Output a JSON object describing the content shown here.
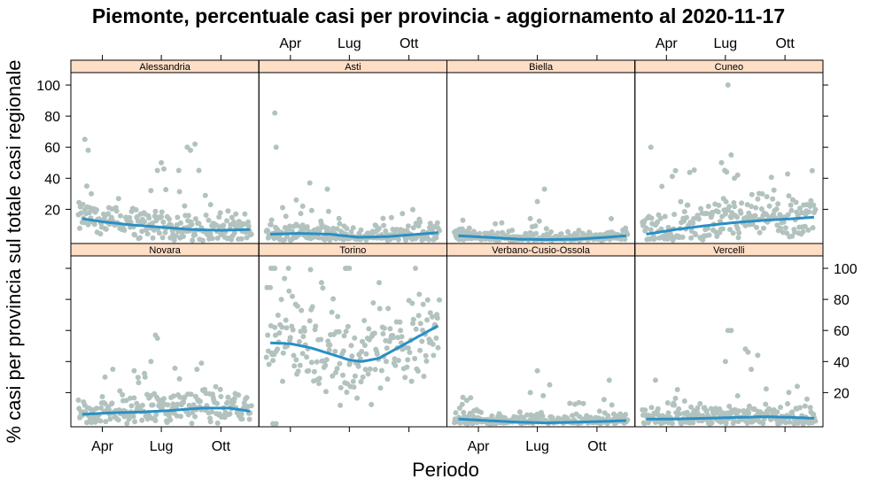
{
  "chart_data": {
    "type": "scatter",
    "title": "Piemonte, percentuale casi per provincia - aggiornamento al 2020-11-17",
    "xlabel": "Periodo",
    "ylabel": "% casi per provincia sul totale casi regionale",
    "x_tick_labels": [
      "Apr",
      "Lug",
      "Ott"
    ],
    "y_tick_labels": [
      "20",
      "40",
      "60",
      "80",
      "100"
    ],
    "x_range": [
      "2020-02-24",
      "2020-11-17"
    ],
    "ylim": [
      0,
      100
    ],
    "grid": false,
    "colors": {
      "points": "#b2c2bf",
      "smooth": "#2a8fc4",
      "strip": "#ffdec6",
      "axis": "#000000"
    },
    "panels": [
      {
        "name": "Alessandria",
        "row": 1,
        "col": 1,
        "smooth": [
          [
            "2020-03-01",
            14
          ],
          [
            "2020-04-01",
            12
          ],
          [
            "2020-05-15",
            10
          ],
          [
            "2020-07-01",
            8.5
          ],
          [
            "2020-08-15",
            7
          ],
          [
            "2020-10-01",
            6.5
          ],
          [
            "2020-11-15",
            7
          ]
        ],
        "outliers": [
          [
            "2020-03-05",
            65
          ],
          [
            "2020-03-10",
            58
          ],
          [
            "2020-03-08",
            35
          ],
          [
            "2020-03-15",
            30
          ],
          [
            "2020-06-25",
            45
          ],
          [
            "2020-07-01",
            50
          ],
          [
            "2020-07-05",
            46
          ],
          [
            "2020-07-28",
            45
          ],
          [
            "2020-08-10",
            60
          ],
          [
            "2020-08-15",
            58
          ],
          [
            "2020-08-22",
            62
          ],
          [
            "2020-08-28",
            45
          ],
          [
            "2020-06-15",
            32
          ],
          [
            "2020-09-15",
            23
          ]
        ],
        "base": 8,
        "spread": 11
      },
      {
        "name": "Asti",
        "row": 1,
        "col": 2,
        "smooth": [
          [
            "2020-03-01",
            4
          ],
          [
            "2020-04-15",
            4.5
          ],
          [
            "2020-06-01",
            4
          ],
          [
            "2020-07-15",
            2
          ],
          [
            "2020-09-01",
            2.5
          ],
          [
            "2020-10-15",
            4
          ],
          [
            "2020-11-15",
            5
          ]
        ],
        "outliers": [
          [
            "2020-03-08",
            82
          ],
          [
            "2020-03-10",
            60
          ],
          [
            "2020-05-01",
            37
          ],
          [
            "2020-05-28",
            33
          ],
          [
            "2020-04-10",
            26
          ],
          [
            "2020-04-20",
            22
          ]
        ],
        "base": 4,
        "spread": 8
      },
      {
        "name": "Biella",
        "row": 1,
        "col": 3,
        "smooth": [
          [
            "2020-03-01",
            3
          ],
          [
            "2020-04-15",
            2
          ],
          [
            "2020-06-01",
            0.8
          ],
          [
            "2020-07-15",
            0.5
          ],
          [
            "2020-09-01",
            0.8
          ],
          [
            "2020-10-15",
            2
          ],
          [
            "2020-11-15",
            3
          ]
        ],
        "outliers": [
          [
            "2020-07-12",
            33
          ],
          [
            "2020-07-01",
            25
          ],
          [
            "2020-06-20",
            14
          ],
          [
            "2020-03-08",
            13
          ]
        ],
        "base": 3,
        "spread": 5
      },
      {
        "name": "Cuneo",
        "row": 1,
        "col": 4,
        "smooth": [
          [
            "2020-03-01",
            4
          ],
          [
            "2020-04-15",
            7
          ],
          [
            "2020-06-01",
            9.5
          ],
          [
            "2020-07-15",
            11.5
          ],
          [
            "2020-09-01",
            13
          ],
          [
            "2020-10-15",
            14
          ],
          [
            "2020-11-15",
            15
          ]
        ],
        "outliers": [
          [
            "2020-03-08",
            60
          ],
          [
            "2020-07-05",
            100
          ],
          [
            "2020-06-25",
            50
          ],
          [
            "2020-07-10",
            55
          ],
          [
            "2020-06-30",
            45
          ],
          [
            "2020-07-20",
            42
          ],
          [
            "2020-07-15",
            40
          ]
        ],
        "base": 11,
        "spread": 16
      },
      {
        "name": "Novara",
        "row": 2,
        "col": 1,
        "smooth": [
          [
            "2020-03-01",
            6
          ],
          [
            "2020-04-15",
            7
          ],
          [
            "2020-06-01",
            7.5
          ],
          [
            "2020-07-15",
            8.5
          ],
          [
            "2020-09-01",
            10
          ],
          [
            "2020-10-15",
            10
          ],
          [
            "2020-11-15",
            8
          ]
        ],
        "outliers": [
          [
            "2020-06-22",
            57
          ],
          [
            "2020-06-25",
            55
          ],
          [
            "2020-04-05",
            30
          ],
          [
            "2020-05-20",
            34
          ],
          [
            "2020-09-01",
            39
          ],
          [
            "2020-08-25",
            35
          ],
          [
            "2020-06-15",
            40
          ]
        ],
        "base": 8,
        "spread": 12
      },
      {
        "name": "Torino",
        "row": 2,
        "col": 2,
        "smooth": [
          [
            "2020-03-01",
            52
          ],
          [
            "2020-04-01",
            51.5
          ],
          [
            "2020-05-01",
            49
          ],
          [
            "2020-06-01",
            45
          ],
          [
            "2020-07-01",
            41
          ],
          [
            "2020-07-20",
            40
          ],
          [
            "2020-08-15",
            42
          ],
          [
            "2020-09-15",
            49
          ],
          [
            "2020-10-15",
            56
          ],
          [
            "2020-11-15",
            63
          ]
        ],
        "outliers": [
          [
            "2020-03-02",
            100
          ],
          [
            "2020-03-05",
            100
          ],
          [
            "2020-03-08",
            100
          ],
          [
            "2020-06-25",
            100
          ],
          [
            "2020-07-01",
            100
          ],
          [
            "2020-06-28",
            100
          ],
          [
            "2020-03-05",
            0
          ],
          [
            "2020-03-10",
            0
          ]
        ],
        "base": 48,
        "spread": 32
      },
      {
        "name": "Verbano-Cusio-Ossola",
        "row": 2,
        "col": 3,
        "smooth": [
          [
            "2020-03-01",
            3
          ],
          [
            "2020-04-15",
            2
          ],
          [
            "2020-06-01",
            1
          ],
          [
            "2020-07-15",
            0.5
          ],
          [
            "2020-09-01",
            1
          ],
          [
            "2020-10-15",
            1.5
          ],
          [
            "2020-11-15",
            2
          ]
        ],
        "outliers": [
          [
            "2020-07-01",
            34
          ],
          [
            "2020-07-20",
            25
          ],
          [
            "2020-10-20",
            28
          ],
          [
            "2020-03-08",
            17
          ],
          [
            "2020-06-20",
            20
          ],
          [
            "2020-07-10",
            18
          ]
        ],
        "base": 2,
        "spread": 6
      },
      {
        "name": "Vercelli",
        "row": 2,
        "col": 4,
        "smooth": [
          [
            "2020-03-01",
            3
          ],
          [
            "2020-04-15",
            3
          ],
          [
            "2020-06-01",
            3.5
          ],
          [
            "2020-07-15",
            4
          ],
          [
            "2020-09-01",
            4.5
          ],
          [
            "2020-10-15",
            4
          ],
          [
            "2020-11-15",
            3.5
          ]
        ],
        "outliers": [
          [
            "2020-07-05",
            60
          ],
          [
            "2020-07-10",
            60
          ],
          [
            "2020-07-01",
            40
          ],
          [
            "2020-08-01",
            48
          ],
          [
            "2020-08-05",
            46
          ],
          [
            "2020-08-20",
            44
          ],
          [
            "2020-03-15",
            28
          ],
          [
            "2020-10-20",
            24
          ],
          [
            "2020-08-10",
            35
          ]
        ],
        "base": 4,
        "spread": 8
      }
    ]
  }
}
